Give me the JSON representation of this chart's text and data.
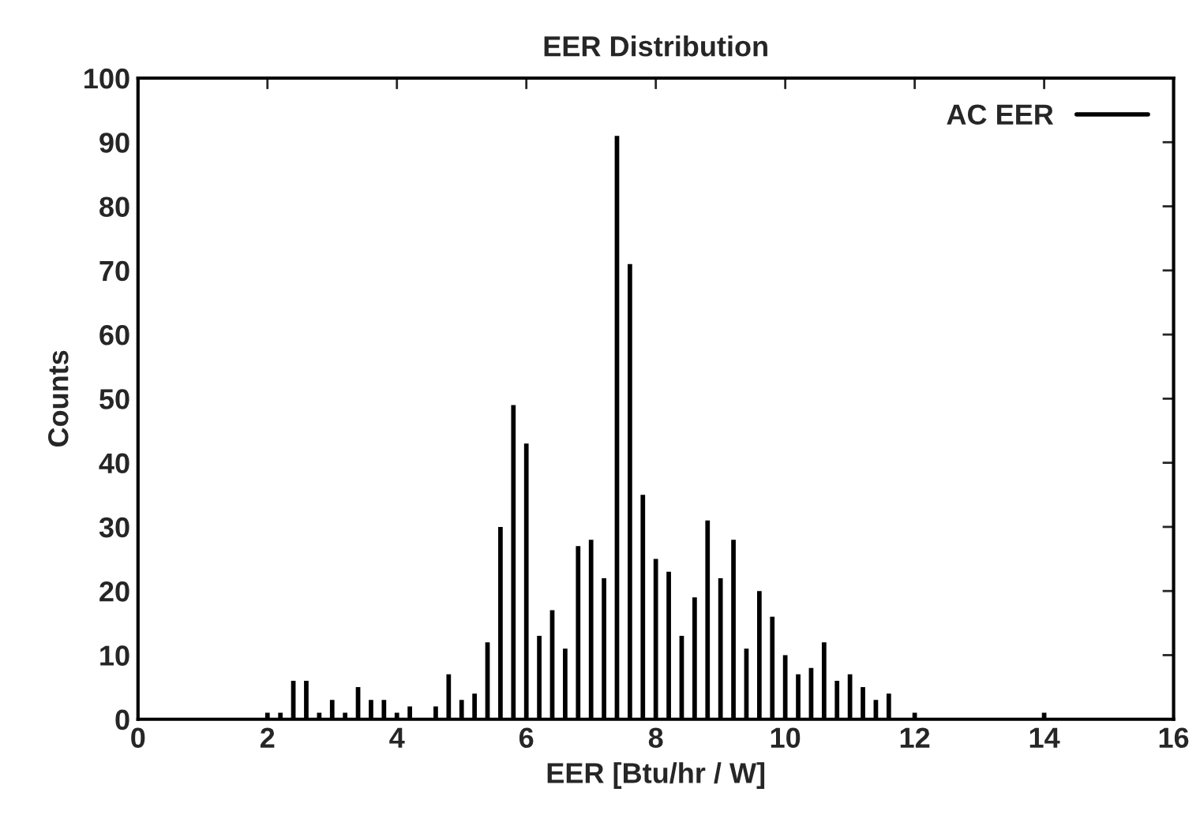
{
  "chart_data": {
    "type": "bar",
    "title": "EER Distribution",
    "xlabel": "EER [Btu/hr / W]",
    "ylabel": "Counts",
    "x": [
      2.0,
      2.2,
      2.4,
      2.6,
      2.8,
      3.0,
      3.2,
      3.4,
      3.6,
      3.8,
      4.0,
      4.2,
      4.6,
      4.8,
      5.0,
      5.2,
      5.4,
      5.6,
      5.8,
      6.0,
      6.2,
      6.4,
      6.6,
      6.8,
      7.0,
      7.2,
      7.4,
      7.6,
      7.8,
      8.0,
      8.2,
      8.4,
      8.6,
      8.8,
      9.0,
      9.2,
      9.4,
      9.6,
      9.8,
      10.0,
      10.2,
      10.4,
      10.6,
      10.8,
      11.0,
      11.2,
      11.4,
      11.6,
      12.0,
      14.0
    ],
    "series": [
      {
        "name": "AC EER",
        "color": "#000000",
        "values": [
          1,
          1,
          6,
          6,
          1,
          3,
          1,
          5,
          3,
          3,
          1,
          2,
          2,
          7,
          3,
          4,
          12,
          30,
          49,
          43,
          13,
          17,
          11,
          27,
          28,
          22,
          91,
          71,
          35,
          25,
          23,
          13,
          19,
          31,
          22,
          28,
          11,
          20,
          16,
          10,
          7,
          8,
          12,
          6,
          7,
          5,
          3,
          4,
          1,
          1
        ]
      }
    ],
    "xlim": [
      0,
      16
    ],
    "xticks": [
      0,
      2,
      4,
      6,
      8,
      10,
      12,
      14,
      16
    ],
    "ylim": [
      0,
      100
    ],
    "yticks": [
      0,
      10,
      20,
      30,
      40,
      50,
      60,
      70,
      80,
      90,
      100
    ],
    "grid": false,
    "legend": "top right"
  }
}
